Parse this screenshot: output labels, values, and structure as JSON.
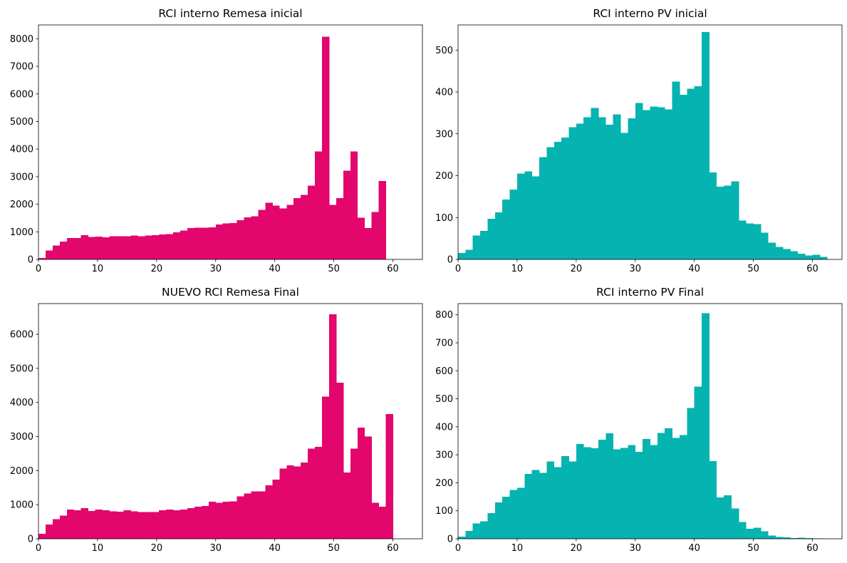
{
  "chart_data": [
    {
      "type": "bar",
      "title": "RCI interno Remesa inicial",
      "color": "#e2066d",
      "xlim": [
        0,
        65
      ],
      "ylim": [
        0,
        8500
      ],
      "xticks": [
        0,
        10,
        20,
        30,
        40,
        50,
        60
      ],
      "yticks": [
        0,
        1000,
        2000,
        3000,
        4000,
        5000,
        6000,
        7000,
        8000
      ],
      "bin_start": 0,
      "bin_width": 1.2,
      "values": [
        50,
        320,
        500,
        640,
        780,
        780,
        880,
        820,
        830,
        800,
        840,
        840,
        840,
        860,
        840,
        860,
        880,
        900,
        920,
        980,
        1050,
        1140,
        1150,
        1150,
        1160,
        1270,
        1300,
        1320,
        1420,
        1520,
        1560,
        1800,
        2050,
        1950,
        1850,
        1980,
        2220,
        2340,
        2680,
        3920,
        8080,
        1970,
        2220,
        3220,
        3920,
        1510,
        1140,
        1720,
        2840
      ]
    },
    {
      "type": "bar",
      "title": "RCI interno PV inicial",
      "color": "#05b3b0",
      "xlim": [
        0,
        65
      ],
      "ylim": [
        0,
        560
      ],
      "xticks": [
        0,
        10,
        20,
        30,
        40,
        50,
        60
      ],
      "yticks": [
        0,
        100,
        200,
        300,
        400,
        500
      ],
      "bin_start": 0,
      "bin_width": 1.25,
      "values": [
        15,
        23,
        57,
        68,
        97,
        112,
        143,
        167,
        205,
        210,
        198,
        244,
        268,
        281,
        291,
        316,
        324,
        340,
        362,
        340,
        322,
        346,
        302,
        337,
        374,
        357,
        365,
        363,
        358,
        425,
        393,
        408,
        414,
        543,
        208,
        174,
        176,
        186,
        93,
        86,
        84,
        64,
        40,
        30,
        25,
        20,
        14,
        9,
        11,
        6
      ]
    },
    {
      "type": "bar",
      "title": "NUEVO RCI Remesa Final",
      "color": "#e2066d",
      "xlim": [
        0,
        65
      ],
      "ylim": [
        0,
        6900
      ],
      "xticks": [
        0,
        10,
        20,
        30,
        40,
        50,
        60
      ],
      "yticks": [
        0,
        1000,
        2000,
        3000,
        4000,
        5000,
        6000
      ],
      "bin_start": 0,
      "bin_width": 1.2,
      "values": [
        150,
        420,
        580,
        680,
        860,
        840,
        900,
        820,
        860,
        840,
        800,
        790,
        840,
        800,
        780,
        780,
        780,
        840,
        860,
        840,
        860,
        900,
        940,
        960,
        1090,
        1060,
        1090,
        1100,
        1240,
        1330,
        1390,
        1390,
        1570,
        1740,
        2060,
        2150,
        2120,
        2240,
        2650,
        2700,
        4170,
        6590,
        4580,
        1940,
        2650,
        3260,
        3000,
        1060,
        940,
        3660
      ]
    },
    {
      "type": "bar",
      "title": "RCI interno PV Final",
      "color": "#05b3b0",
      "xlim": [
        0,
        65
      ],
      "ylim": [
        0,
        840
      ],
      "xticks": [
        0,
        10,
        20,
        30,
        40,
        50,
        60
      ],
      "yticks": [
        0,
        100,
        200,
        300,
        400,
        500,
        600,
        700,
        800
      ],
      "bin_start": 0,
      "bin_width": 1.25,
      "values": [
        8,
        28,
        55,
        62,
        92,
        130,
        150,
        175,
        182,
        232,
        246,
        235,
        276,
        256,
        295,
        276,
        339,
        327,
        323,
        354,
        377,
        320,
        325,
        335,
        310,
        356,
        335,
        378,
        395,
        360,
        370,
        467,
        544,
        806,
        277,
        148,
        155,
        108,
        60,
        36,
        40,
        27,
        12,
        6,
        5,
        3,
        4,
        2,
        1,
        1
      ]
    }
  ]
}
